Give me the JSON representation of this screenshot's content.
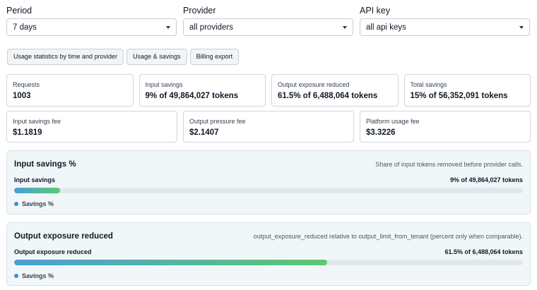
{
  "filters": [
    {
      "label": "Period",
      "value": "7 days"
    },
    {
      "label": "Provider",
      "value": "all providers"
    },
    {
      "label": "API key",
      "value": "all api keys"
    }
  ],
  "tabs": [
    {
      "label": "Usage statistics by time and provider"
    },
    {
      "label": "Usage & savings"
    },
    {
      "label": "Billing export"
    }
  ],
  "stats": [
    {
      "label": "Requests",
      "value": "1003"
    },
    {
      "label": "Input savings",
      "value": "9% of 49,864,027 tokens"
    },
    {
      "label": "Output exposure reduced",
      "value": "61.5% of 6,488,064 tokens"
    },
    {
      "label": "Total savings",
      "value": "15% of 56,352,091 tokens"
    }
  ],
  "fees": [
    {
      "label": "Input savings fee",
      "value": "$1.1819"
    },
    {
      "label": "Output pressure fee",
      "value": "$2.1407"
    },
    {
      "label": "Platform usage fee",
      "value": "$3.3226"
    }
  ],
  "panels": [
    {
      "title": "Input savings %",
      "description": "Share of input tokens removed before provider calls.",
      "metric_label": "Input savings",
      "metric_value": "9% of 49,864,027 tokens",
      "percent": 9,
      "legend": "Savings %"
    },
    {
      "title": "Output exposure reduced",
      "description": "output_exposure_reduced relative to output_limit_from_tenant (percent only when comparable).",
      "metric_label": "Output exposure reduced",
      "metric_value": "61.5% of 6,488,064 tokens",
      "percent": 61.5,
      "legend": "Savings %"
    }
  ],
  "colors": {
    "bar_start": "#4a9fd6",
    "bar_end": "#5cc870",
    "legend_dot": "#3b8fd1",
    "panel_bg": "#f1f7f8"
  }
}
